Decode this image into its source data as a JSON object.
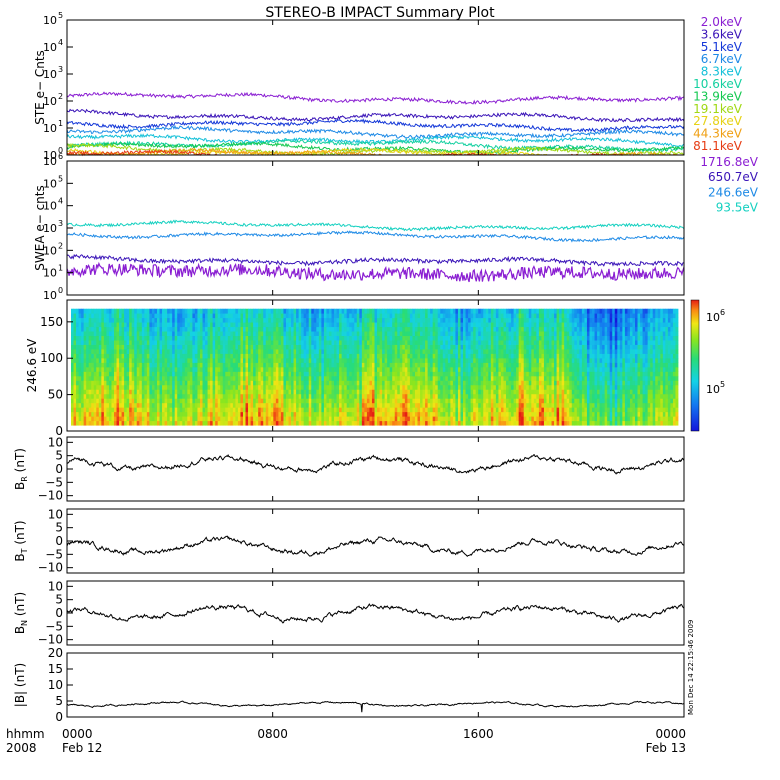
{
  "title": "STEREO-B IMPACT Summary Plot",
  "footer": {
    "x_label_line1": "hhmm",
    "x_label_line2": "2008",
    "start_date": "Feb 12",
    "end_date": "Feb 13",
    "timestamp_note": "Mon Dec 14 22:15:46 2009"
  },
  "chart_data": [
    {
      "type": "line",
      "panel": "ste",
      "ylabel": "STE e− Cnts",
      "yscale": "log",
      "ylim": [
        1,
        100000
      ],
      "y_tick_exponents": [
        "0",
        "1",
        "2",
        "3",
        "4",
        "5"
      ],
      "legend_placement": "right",
      "series": [
        {
          "name": "2.0keV",
          "color": "#8a1ed2",
          "level": 150
        },
        {
          "name": "3.6keV",
          "color": "#3a14b8",
          "level": 32
        },
        {
          "name": "5.1keV",
          "color": "#1438d8",
          "level": 16
        },
        {
          "name": "6.7keV",
          "color": "#1e8ae6",
          "level": 8
        },
        {
          "name": "8.3keV",
          "color": "#14c0d8",
          "level": 4.5
        },
        {
          "name": "10.6keV",
          "color": "#14d0a0",
          "level": 3
        },
        {
          "name": "13.9keV",
          "color": "#14c850",
          "level": 2.2
        },
        {
          "name": "19.1keV",
          "color": "#a0d814",
          "level": 1.7
        },
        {
          "name": "27.8keV",
          "color": "#e6d214",
          "level": 1.4
        },
        {
          "name": "44.3keV",
          "color": "#f0a014",
          "level": 1.25
        },
        {
          "name": "81.1keV",
          "color": "#e63c14",
          "level": 1.1
        }
      ]
    },
    {
      "type": "line",
      "panel": "swea",
      "ylabel": "SWEA e− cnts",
      "yscale": "log",
      "ylim": [
        1,
        1000000
      ],
      "y_tick_exponents": [
        "0",
        "1",
        "2",
        "3",
        "4",
        "5",
        "6"
      ],
      "legend_placement": "right",
      "series": [
        {
          "name": "1716.8eV",
          "color": "#8a1ed2",
          "level": 12
        },
        {
          "name": "650.7eV",
          "color": "#3a14b8",
          "level": 40
        },
        {
          "name": "246.6eV",
          "color": "#1e8ae6",
          "level": 550
        },
        {
          "name": "93.5eV",
          "color": "#14d0c0",
          "level": 1500
        }
      ]
    },
    {
      "type": "heatmap",
      "panel": "pad",
      "ylabel": "246.6 eV",
      "ylim": [
        0,
        180
      ],
      "y_ticks": [
        "0",
        "50",
        "100",
        "150"
      ],
      "colorbar_labels": [
        "10",
        "10"
      ],
      "colorbar_exponents": [
        "5",
        "6"
      ]
    },
    {
      "type": "line",
      "panel": "br",
      "ylabel": "B",
      "ylabel_sub": "R",
      "ylabel_unit": "(nT)",
      "ylim": [
        -12,
        12
      ],
      "y_ticks": [
        "10",
        "5",
        "0",
        "−5",
        "−10"
      ],
      "baseline": 2
    },
    {
      "type": "line",
      "panel": "bt",
      "ylabel": "B",
      "ylabel_sub": "T",
      "ylabel_unit": "(nT)",
      "ylim": [
        -12,
        12
      ],
      "y_ticks": [
        "10",
        "5",
        "0",
        "−5",
        "−10"
      ],
      "baseline": -2
    },
    {
      "type": "line",
      "panel": "bn",
      "ylabel": "B",
      "ylabel_sub": "N",
      "ylabel_unit": "(nT)",
      "ylim": [
        -12,
        12
      ],
      "y_ticks": [
        "10",
        "5",
        "0",
        "−5",
        "−10"
      ],
      "baseline": 0
    },
    {
      "type": "line",
      "panel": "bmag",
      "ylabel": "|B|",
      "ylabel_unit": "(nT)",
      "ylim": [
        0,
        20
      ],
      "y_ticks": [
        "20",
        "15",
        "10",
        "5",
        "0"
      ],
      "baseline": 4
    }
  ],
  "x_axis": {
    "ticks": [
      "0000",
      "0800",
      "1600",
      "0000"
    ],
    "values_hours": [
      0,
      8,
      16,
      24
    ],
    "xlim_hours": [
      0,
      24
    ]
  }
}
